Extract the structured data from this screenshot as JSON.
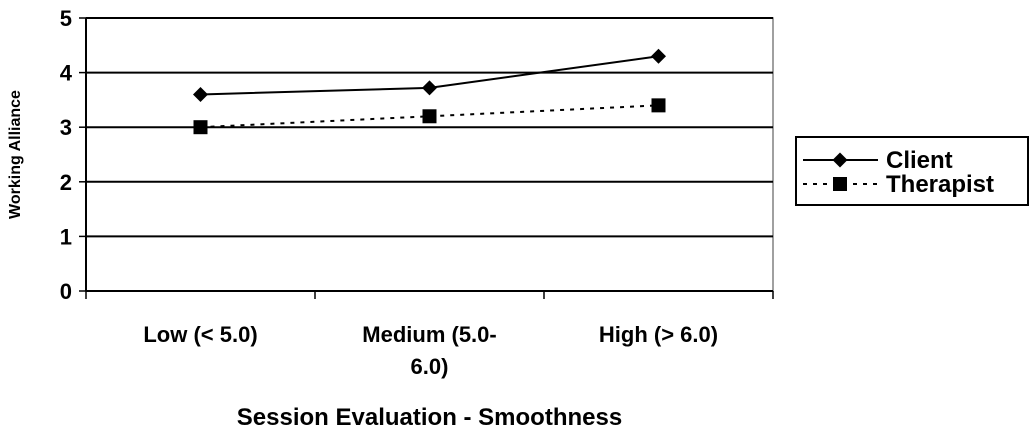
{
  "chart_data": {
    "type": "line",
    "categories": [
      "Low (< 5.0)",
      "Medium (5.0-6.0)",
      "High (> 6.0)"
    ],
    "category_lines": [
      [
        "Low (< 5.0)"
      ],
      [
        "Medium (5.0-",
        "6.0)"
      ],
      [
        "High (> 6.0)"
      ]
    ],
    "series": [
      {
        "name": "Client",
        "values": [
          3.6,
          3.72,
          4.3
        ],
        "marker": "diamond",
        "line_style": "solid",
        "color": "#000000"
      },
      {
        "name": "Therapist",
        "values": [
          3.0,
          3.2,
          3.4
        ],
        "marker": "square",
        "line_style": "dashed",
        "color": "#000000"
      }
    ],
    "xlabel": "Session Evaluation - Smoothness",
    "ylabel": "Working Alliance",
    "ylim": [
      0,
      5
    ],
    "yticks": [
      0,
      1,
      2,
      3,
      4,
      5
    ],
    "grid": "horizontal",
    "legend_position": "right"
  }
}
